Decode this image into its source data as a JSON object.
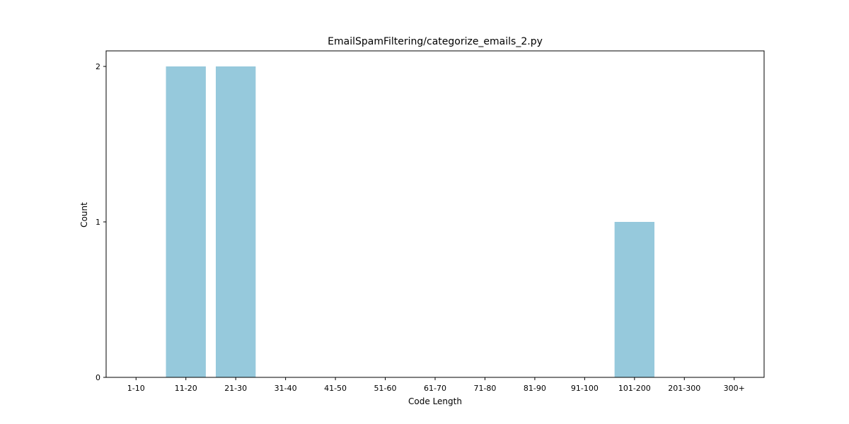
{
  "chart_data": {
    "type": "bar",
    "title": "EmailSpamFiltering/categorize_emails_2.py",
    "xlabel": "Code Length",
    "ylabel": "Count",
    "categories": [
      "1-10",
      "11-20",
      "21-30",
      "31-40",
      "41-50",
      "51-60",
      "61-70",
      "71-80",
      "81-90",
      "91-100",
      "101-200",
      "201-300",
      "300+"
    ],
    "values": [
      0,
      2,
      2,
      0,
      0,
      0,
      0,
      0,
      0,
      0,
      1,
      0,
      0
    ],
    "ylim": [
      0,
      2.1
    ],
    "yticks": [
      0,
      1,
      2
    ],
    "grid": false,
    "legend": "none",
    "bar_color": "#96c9dc"
  }
}
